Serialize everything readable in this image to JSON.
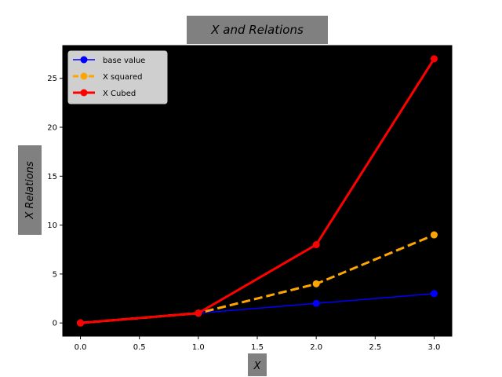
{
  "chart_data": {
    "type": "line",
    "title": "X and Relations",
    "xlabel": "X",
    "ylabel": "X Relations",
    "x": [
      0,
      1,
      2,
      3
    ],
    "xlim": [
      -0.15,
      3.15
    ],
    "ylim": [
      -1.35,
      28.35
    ],
    "xticks": [
      "0.0",
      "0.5",
      "1.0",
      "1.5",
      "2.0",
      "2.5",
      "3.0"
    ],
    "xtick_values": [
      0,
      0.5,
      1,
      1.5,
      2,
      2.5,
      3
    ],
    "yticks": [
      "0",
      "5",
      "10",
      "15",
      "20",
      "25"
    ],
    "ytick_values": [
      0,
      5,
      10,
      15,
      20,
      25
    ],
    "grid": false,
    "plot_background": "#000000",
    "legend_position": "upper-left",
    "series": [
      {
        "name": "base value",
        "values": [
          0,
          1,
          2,
          3
        ],
        "color": "#0000ff",
        "line_style": "solid",
        "marker": "circle"
      },
      {
        "name": "X squared",
        "values": [
          0,
          1,
          4,
          9
        ],
        "color": "#ffa500",
        "line_style": "dashed",
        "marker": "circle"
      },
      {
        "name": "X Cubed",
        "values": [
          0,
          1,
          8,
          27
        ],
        "color": "#ff0000",
        "line_style": "solid",
        "marker": "circle"
      }
    ]
  }
}
